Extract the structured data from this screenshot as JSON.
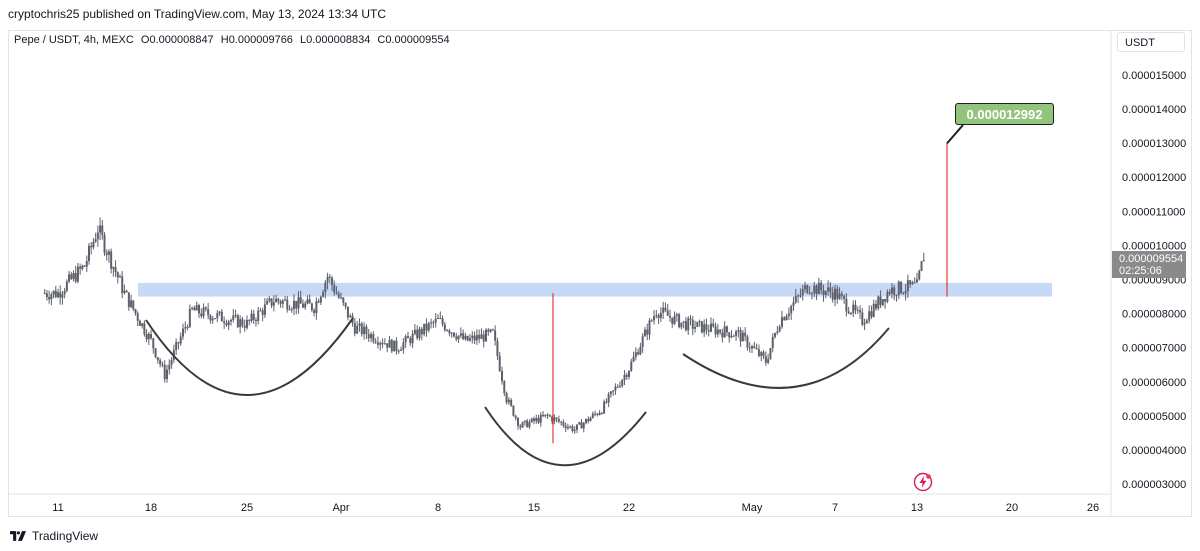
{
  "header": {
    "text": "cryptochris25 published on TradingView.com, May 13, 2024 13:34 UTC"
  },
  "legend": {
    "symbol": "Pepe / USDT, 4h, MEXC",
    "open": "O0.000008847",
    "high": "H0.000009766",
    "low": "L0.000008834",
    "close": "C0.000009554"
  },
  "currency_button": "USDT",
  "target_label": "0.000012992",
  "last_price": {
    "value": "0.000009554",
    "countdown": "02:25:06"
  },
  "footer": {
    "brand": "TradingView"
  },
  "colors": {
    "candle": "#5d606b",
    "resistance_band": "#bcd2f4",
    "measure_line": "#e53935",
    "pattern_curve": "#3a3a3a",
    "target_bg": "#93c47d",
    "last_price_bg": "#8a8a8a"
  },
  "chart_data": {
    "type": "candlestick",
    "symbol": "Pepe / USDT",
    "timeframe": "4h",
    "exchange": "MEXC",
    "y_ticks": [
      "0.000003000",
      "0.000004000",
      "0.000005000",
      "0.000006000",
      "0.000007000",
      "0.000008000",
      "0.000009000",
      "0.000010000",
      "0.000011000",
      "0.000012000",
      "0.000013000",
      "0.000014000",
      "0.000015000"
    ],
    "ylim": [
      2.8e-06,
      1.57e-05
    ],
    "x_ticks": [
      "11",
      "18",
      "25",
      "Apr",
      "8",
      "15",
      "22",
      "May",
      "7",
      "13",
      "20",
      "26"
    ],
    "price_series_approx": {
      "points": [
        [
          "11 Mar",
          8.6e-06
        ],
        [
          "13 Mar",
          9.4e-06
        ],
        [
          "14 Mar",
          1.05e-05
        ],
        [
          "16 Mar",
          8.6e-06
        ],
        [
          "18 Mar",
          7.2e-06
        ],
        [
          "19 Mar",
          6.2e-06
        ],
        [
          "21 Mar",
          8.1e-06
        ],
        [
          "25 Mar",
          7.7e-06
        ],
        [
          "27 Mar",
          8.4e-06
        ],
        [
          "30 Mar",
          8.2e-06
        ],
        [
          "31 Mar",
          9.1e-06
        ],
        [
          "2 Apr",
          7.6e-06
        ],
        [
          "5 Apr",
          7e-06
        ],
        [
          "8 Apr",
          7.8e-06
        ],
        [
          "10 Apr",
          7.2e-06
        ],
        [
          "12 Apr",
          7.4e-06
        ],
        [
          "13 Apr",
          5.5e-06
        ],
        [
          "14 Apr",
          4.7e-06
        ],
        [
          "16 Apr",
          5e-06
        ],
        [
          "18 Apr",
          4.6e-06
        ],
        [
          "20 Apr",
          5.2e-06
        ],
        [
          "22 Apr",
          6.4e-06
        ],
        [
          "24 Apr",
          8.1e-06
        ],
        [
          "26 Apr",
          7.7e-06
        ],
        [
          "30 Apr",
          7.4e-06
        ],
        [
          "2 May",
          6.6e-06
        ],
        [
          "3 May",
          7.8e-06
        ],
        [
          "5 May",
          8.8e-06
        ],
        [
          "7 May",
          8.6e-06
        ],
        [
          "9 May",
          7.8e-06
        ],
        [
          "11 May",
          8.7e-06
        ],
        [
          "13 May",
          8.8e-06
        ],
        [
          "13 May 12:00",
          9.7e-06
        ]
      ]
    },
    "resistance_zone": [
      8.5e-06,
      8.9e-06
    ],
    "measured_move": {
      "from": 4.2e-06,
      "to": 8.6e-06,
      "projection_from": 8.5e-06,
      "projection_to": 1.2992e-05
    },
    "annotations": [
      "0.000012992"
    ],
    "last_price": 9.554e-06
  }
}
